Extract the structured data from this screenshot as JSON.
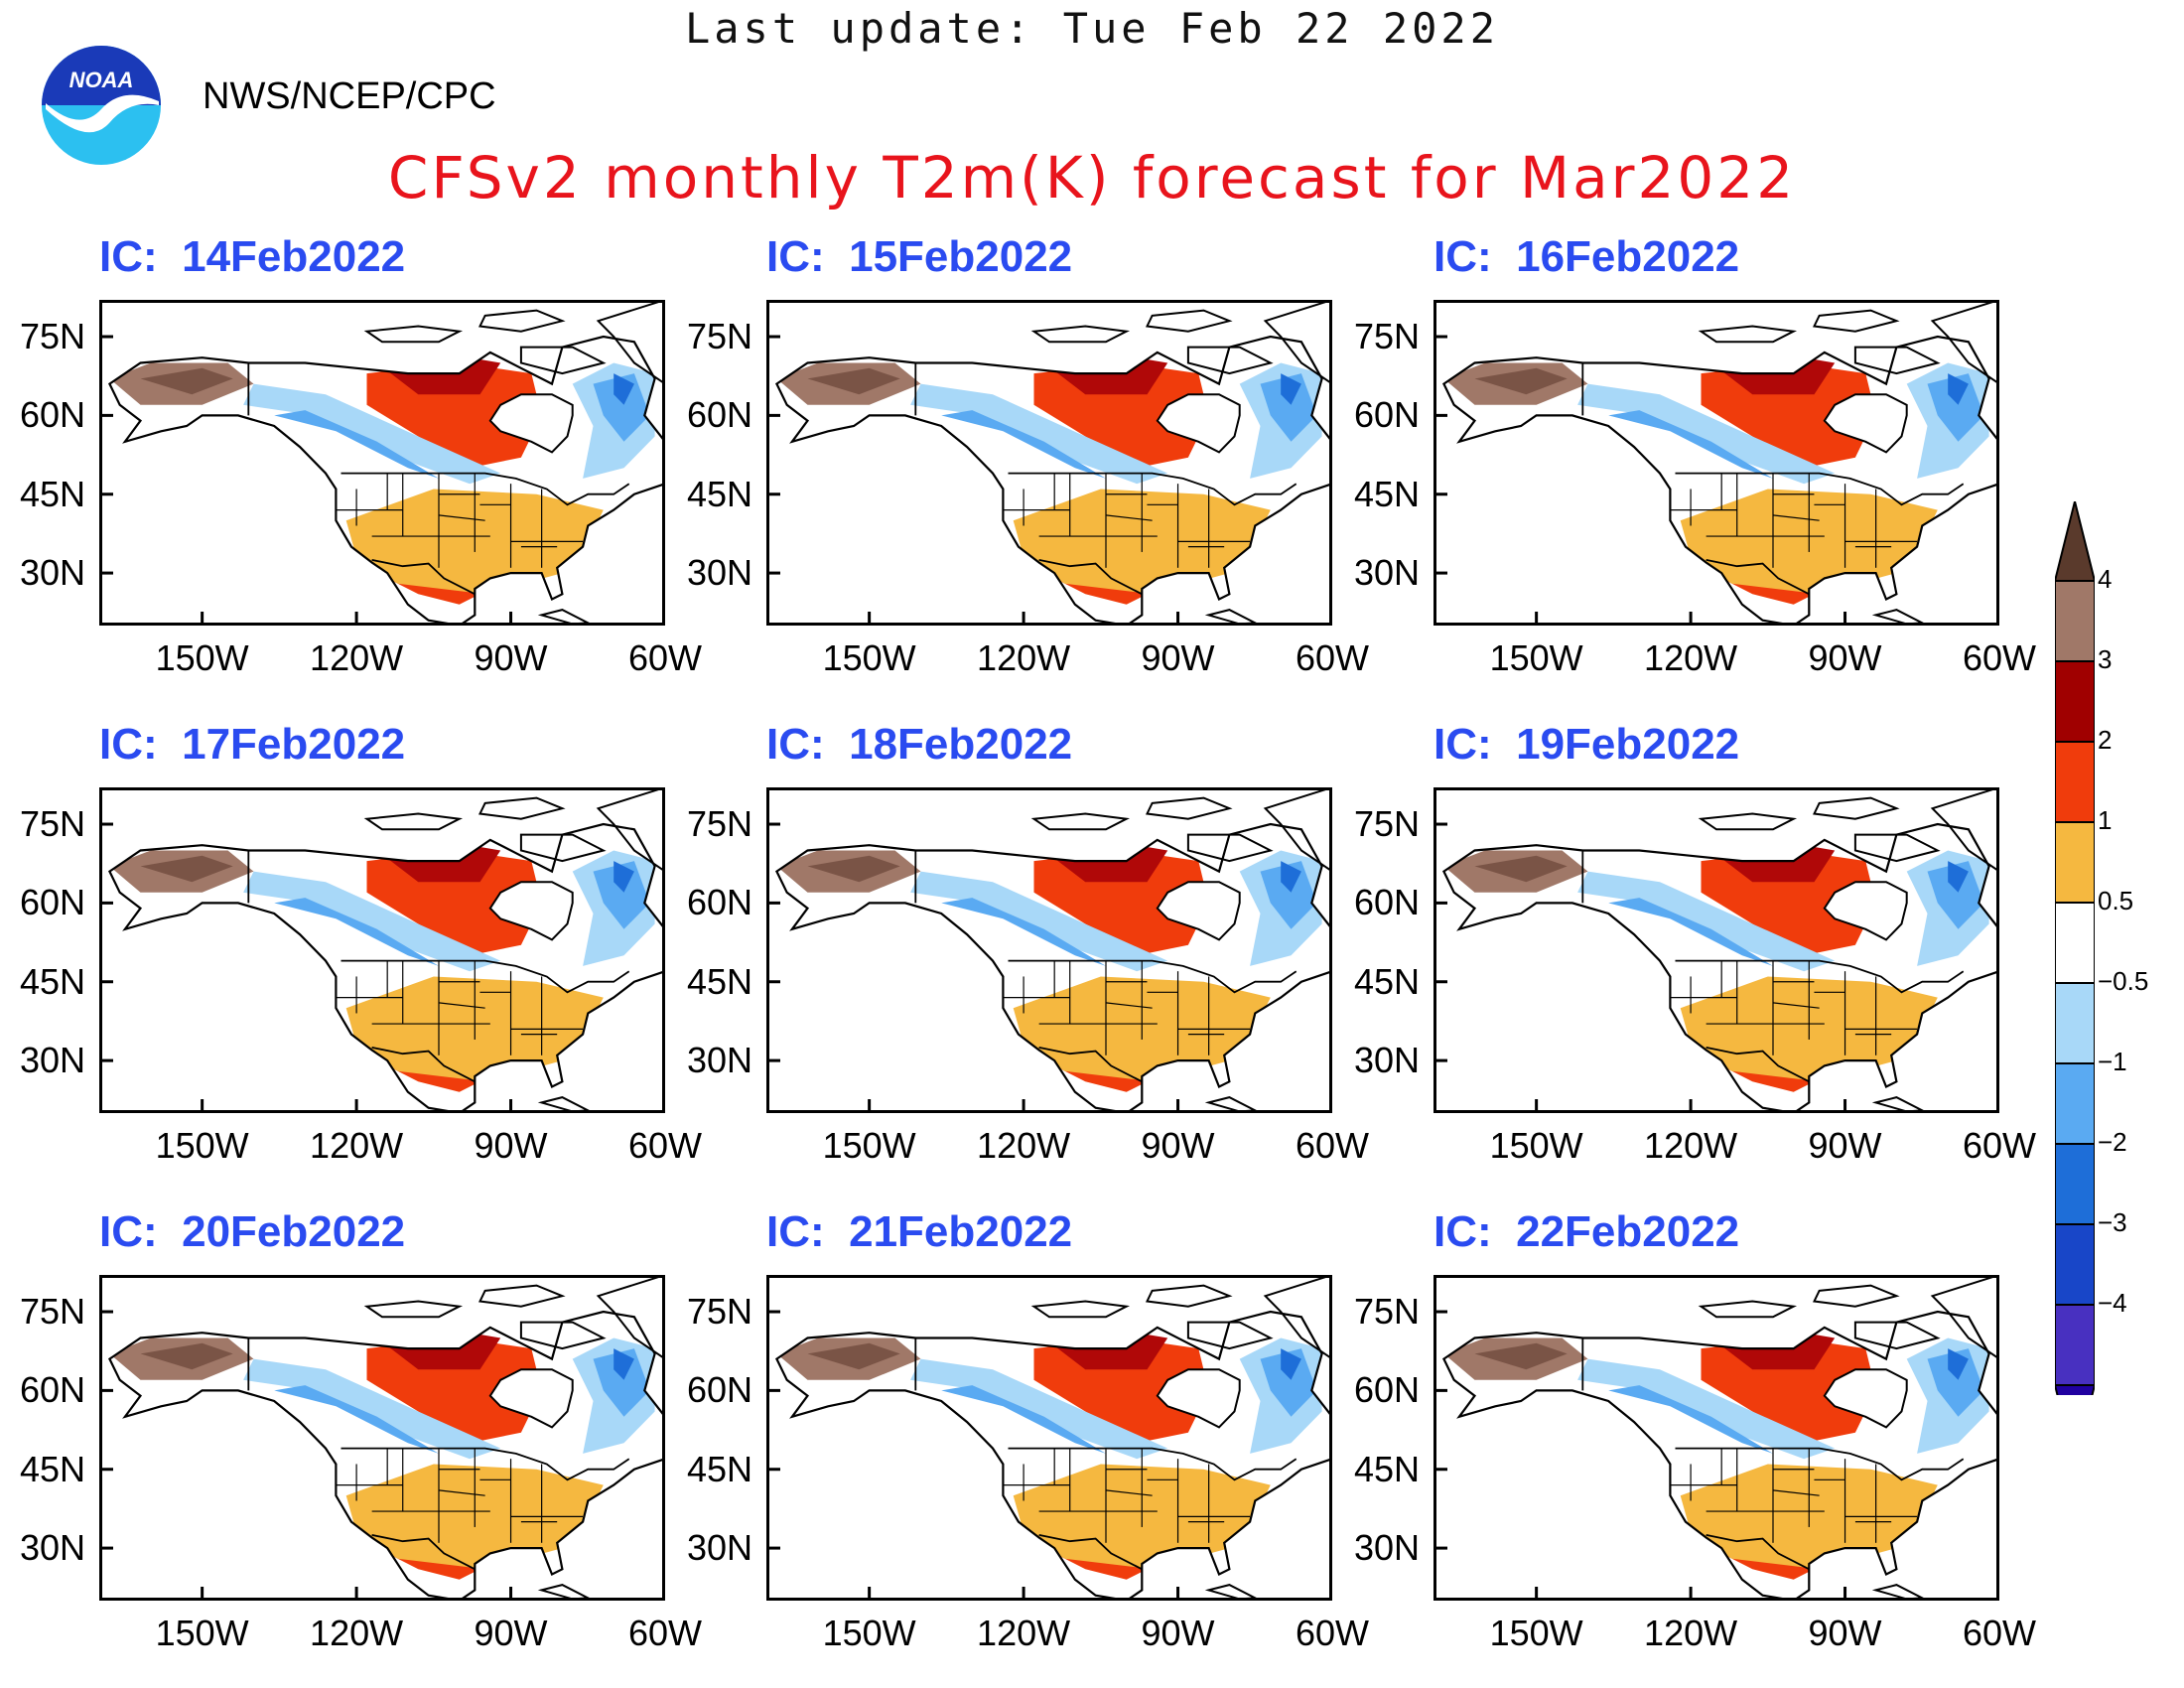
{
  "header": {
    "last_update": "Last update: Tue Feb 22 2022",
    "agency": "NWS/NCEP/CPC",
    "logo_text": "NOAA",
    "title": "CFSv2 monthly T2m(K) forecast for Mar2022"
  },
  "axes": {
    "lat_labels": [
      "75N",
      "60N",
      "45N",
      "30N"
    ],
    "lon_labels": [
      "150W",
      "120W",
      "90W",
      "60W"
    ]
  },
  "panels": [
    {
      "ic_label": "IC:",
      "ic_date": "14Feb2022"
    },
    {
      "ic_label": "IC:",
      "ic_date": "15Feb2022"
    },
    {
      "ic_label": "IC:",
      "ic_date": "16Feb2022"
    },
    {
      "ic_label": "IC:",
      "ic_date": "17Feb2022"
    },
    {
      "ic_label": "IC:",
      "ic_date": "18Feb2022"
    },
    {
      "ic_label": "IC:",
      "ic_date": "19Feb2022"
    },
    {
      "ic_label": "IC:",
      "ic_date": "20Feb2022"
    },
    {
      "ic_label": "IC:",
      "ic_date": "21Feb2022"
    },
    {
      "ic_label": "IC:",
      "ic_date": "22Feb2022"
    }
  ],
  "colorbar": {
    "labels": [
      "4",
      "3",
      "2",
      "1",
      "0.5",
      "−0.5",
      "−1",
      "−2",
      "−3",
      "−4"
    ],
    "colors": [
      "#5a3a2c",
      "#a07868",
      "#a00000",
      "#f03c0c",
      "#f5b840",
      "#ffffff",
      "#a8d8f8",
      "#5aaaf2",
      "#1e6ed8",
      "#1846c8",
      "#4830c0",
      "#2000a0"
    ]
  },
  "colors": {
    "title": "#e8141c",
    "panel_title": "#2a4bf0",
    "warm_extreme": "#7a5446",
    "warm_high": "#a07868",
    "warm_mid": "#b00808",
    "warm": "#f03c0c",
    "warm_low": "#f5b840",
    "cool_low": "#a8d8f8",
    "cool": "#5aaaf2",
    "cool_mid": "#1e6ed8"
  }
}
